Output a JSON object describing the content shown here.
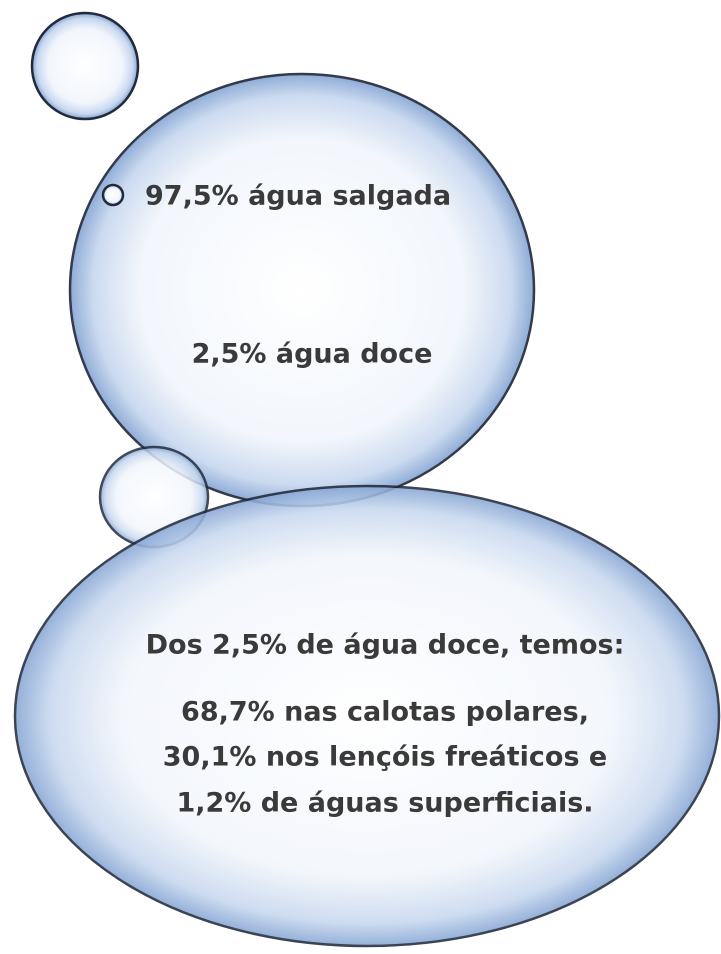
{
  "top_bubble": {
    "salt_water": "97,5% água salgada",
    "fresh_water": "2,5% água doce"
  },
  "bottom_bubble": {
    "heading": "Dos 2,5% de água doce, temos:",
    "lines": [
      "68,7% nas calotas polares,",
      "30,1% nos lençóis freáticos e",
      "1,2% de águas superficiais."
    ]
  }
}
